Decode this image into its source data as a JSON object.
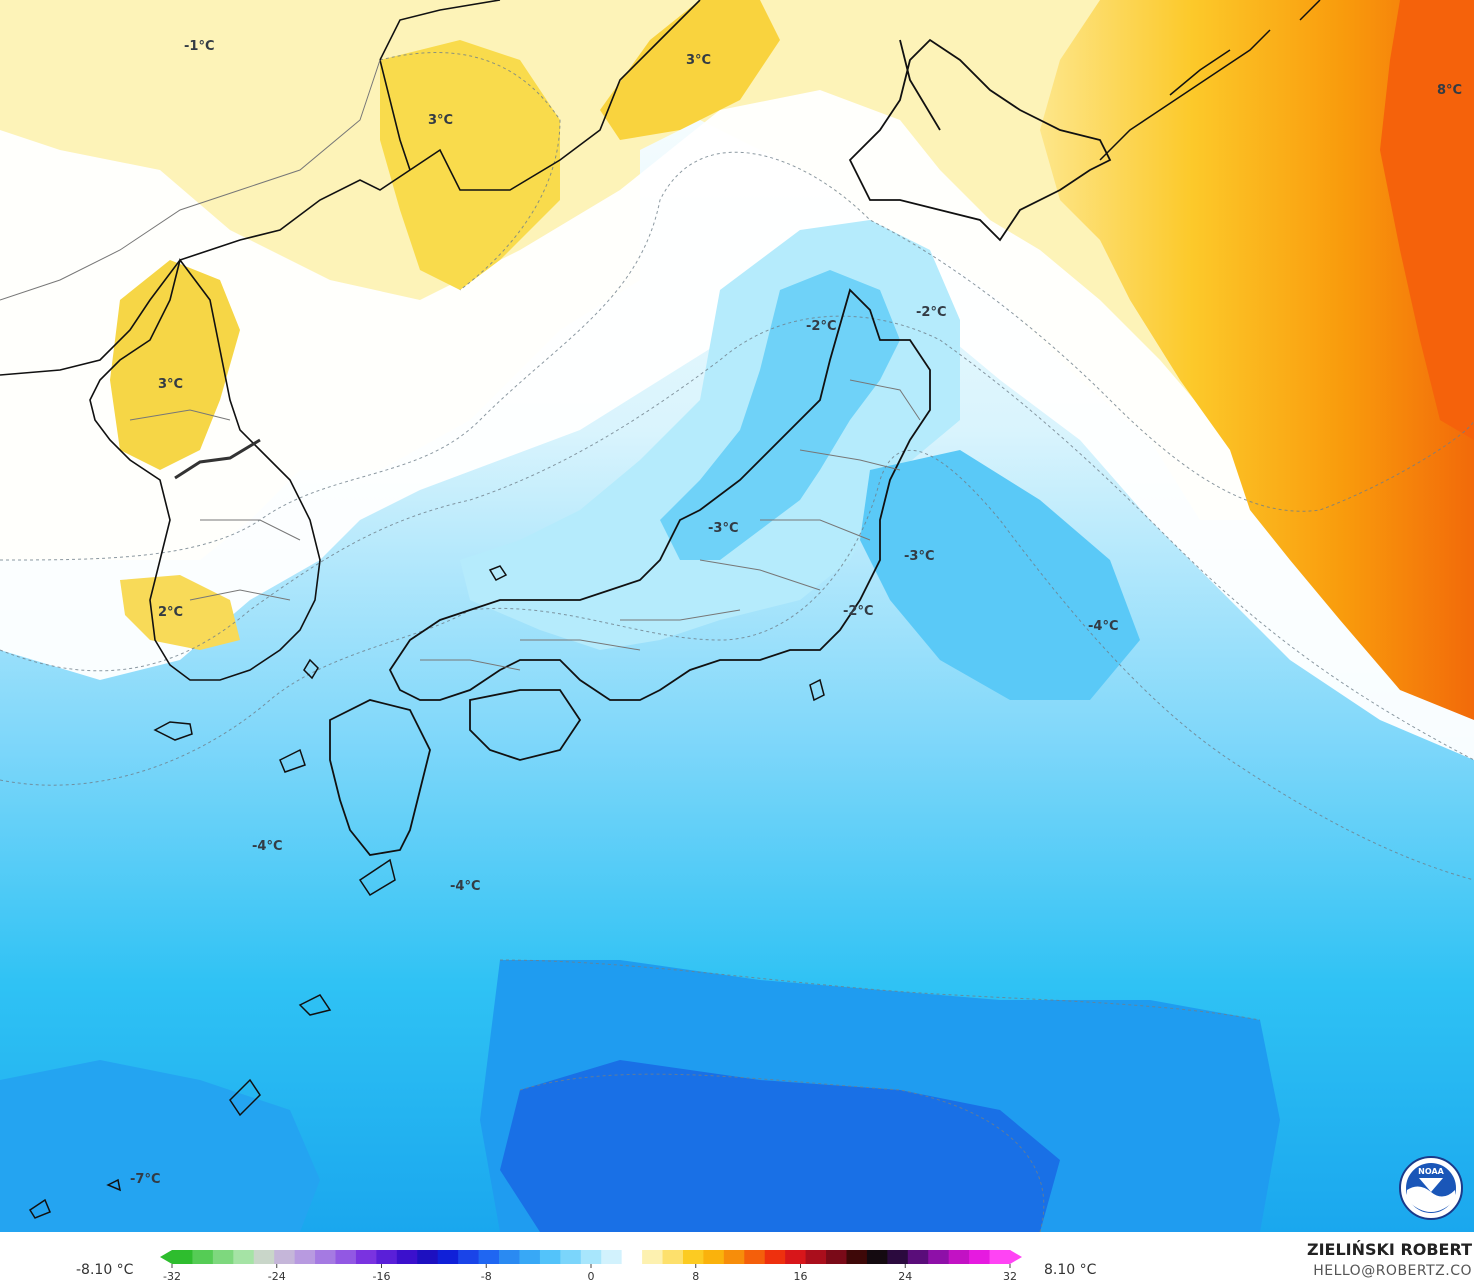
{
  "map": {
    "labels": [
      {
        "id": "n-china-1",
        "text": "-1°C"
      },
      {
        "id": "manchuria-3",
        "text": "3°C"
      },
      {
        "id": "okhotsk-3",
        "text": "3°C"
      },
      {
        "id": "kamchatka-8",
        "text": "8°C"
      },
      {
        "id": "korea-n-3",
        "text": "3°C"
      },
      {
        "id": "korea-s-2",
        "text": "2°C"
      },
      {
        "id": "tohoku-w-2",
        "text": "-2°C"
      },
      {
        "id": "hokkaido-e-2",
        "text": "-2°C"
      },
      {
        "id": "honshu-c-3",
        "text": "-3°C"
      },
      {
        "id": "pacific-3",
        "text": "-3°C"
      },
      {
        "id": "kanto-2",
        "text": "-2°C"
      },
      {
        "id": "pacific-4",
        "text": "-4°C"
      },
      {
        "id": "ecs-4",
        "text": "-4°C"
      },
      {
        "id": "kyushu-s-4",
        "text": "-4°C"
      },
      {
        "id": "ryukyu-7",
        "text": "-7°C"
      }
    ]
  },
  "colorbar": {
    "min_label": "-8.10 °C",
    "max_label": "8.10 °C",
    "ticks": [
      "-32",
      "-24",
      "-16",
      "-8",
      "0",
      "8",
      "16",
      "24",
      "32"
    ],
    "colors": [
      "#2ebd2e",
      "#55cc55",
      "#7ed87e",
      "#a5e3a5",
      "#c9d6c9",
      "#c5b6d9",
      "#b89ae0",
      "#a57ae2",
      "#9258e3",
      "#7a33e0",
      "#5a1fd8",
      "#3b10cc",
      "#1d10c0",
      "#1020d8",
      "#1a44e8",
      "#1f66f2",
      "#2a8af2",
      "#38a8f6",
      "#53c3fa",
      "#7bd5fb",
      "#a8e6fc",
      "#d2f2fd",
      "#ffffff",
      "#fdf1b0",
      "#fde06c",
      "#fccb22",
      "#fab20c",
      "#f78d0a",
      "#f45f0b",
      "#ee300e",
      "#d8161a",
      "#aa0e1c",
      "#7a0a18",
      "#3e0808",
      "#140a10",
      "#2b0a3e",
      "#5a0d7a",
      "#8e10a8",
      "#c212c4",
      "#e61ae0",
      "#ff44f4"
    ]
  },
  "credit": {
    "name": "ZIELIŃSKI ROBERT",
    "email": "HELLO@ROBERTZ.CO",
    "logo_text": "NOAA"
  }
}
